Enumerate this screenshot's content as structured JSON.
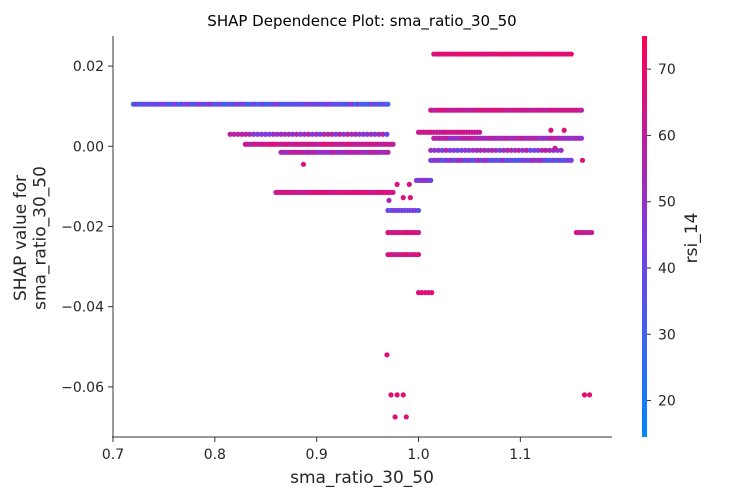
{
  "chart_data": {
    "type": "scatter",
    "title": "SHAP Dependence Plot: sma_ratio_30_50",
    "xlabel": "sma_ratio_30_50",
    "ylabel": "SHAP value for\nsma_ratio_30_50",
    "xlim": [
      0.7,
      1.19
    ],
    "ylim": [
      -0.0725,
      0.0275
    ],
    "xticks": [
      "0.7",
      "0.8",
      "0.9",
      "1.0",
      "1.1"
    ],
    "yticks": [
      "0.02",
      "0.00",
      "−0.02",
      "−0.04",
      "−0.06"
    ],
    "colorbar": {
      "label": "rsi_14",
      "range": [
        14.5,
        75
      ],
      "ticks": [
        "20",
        "30",
        "40",
        "50",
        "60",
        "70"
      ],
      "colors": [
        "#008afb",
        "#7d3be2",
        "#ff0052"
      ]
    },
    "bands": [
      {
        "y": 0.0105,
        "x0": 0.72,
        "x1": 0.97,
        "n": 95,
        "rsi_mean": 38,
        "rsi_spread": 12
      },
      {
        "y": 0.003,
        "x0": 0.815,
        "x1": 0.965,
        "n": 40,
        "rsi_mean": 52,
        "rsi_spread": 8
      },
      {
        "y": 0.0005,
        "x0": 0.83,
        "x1": 0.975,
        "n": 60,
        "rsi_mean": 62,
        "rsi_spread": 6
      },
      {
        "y": -0.0015,
        "x0": 0.865,
        "x1": 0.97,
        "n": 45,
        "rsi_mean": 55,
        "rsi_spread": 6
      },
      {
        "y": -0.0115,
        "x0": 0.86,
        "x1": 0.975,
        "n": 50,
        "rsi_mean": 65,
        "rsi_spread": 4
      },
      {
        "y": -0.016,
        "x0": 0.97,
        "x1": 1.0,
        "n": 12,
        "rsi_mean": 40,
        "rsi_spread": 8
      },
      {
        "y": -0.0215,
        "x0": 0.97,
        "x1": 1.0,
        "n": 12,
        "rsi_mean": 65,
        "rsi_spread": 4
      },
      {
        "y": -0.027,
        "x0": 0.97,
        "x1": 1.0,
        "n": 12,
        "rsi_mean": 65,
        "rsi_spread": 4
      },
      {
        "y": 0.023,
        "x0": 1.015,
        "x1": 1.15,
        "n": 50,
        "rsi_mean": 68,
        "rsi_spread": 3
      },
      {
        "y": 0.009,
        "x0": 1.012,
        "x1": 1.16,
        "n": 65,
        "rsi_mean": 63,
        "rsi_spread": 4
      },
      {
        "y": 0.0035,
        "x0": 1.0,
        "x1": 1.06,
        "n": 25,
        "rsi_mean": 62,
        "rsi_spread": 4
      },
      {
        "y": 0.002,
        "x0": 1.015,
        "x1": 1.16,
        "n": 55,
        "rsi_mean": 55,
        "rsi_spread": 7
      },
      {
        "y": -0.001,
        "x0": 1.012,
        "x1": 1.14,
        "n": 35,
        "rsi_mean": 50,
        "rsi_spread": 10
      },
      {
        "y": -0.0035,
        "x0": 1.012,
        "x1": 1.15,
        "n": 75,
        "rsi_mean": 42,
        "rsi_spread": 14
      },
      {
        "y": -0.0085,
        "x0": 0.998,
        "x1": 1.012,
        "n": 8,
        "rsi_mean": 45,
        "rsi_spread": 6
      },
      {
        "y": -0.0365,
        "x0": 1.0,
        "x1": 1.013,
        "n": 5,
        "rsi_mean": 68,
        "rsi_spread": 3
      },
      {
        "y": -0.0215,
        "x0": 1.155,
        "x1": 1.17,
        "n": 6,
        "rsi_mean": 62,
        "rsi_spread": 4
      }
    ],
    "points": [
      {
        "x": 0.969,
        "y": -0.052,
        "rsi": 68
      },
      {
        "x": 0.973,
        "y": -0.062,
        "rsi": 68
      },
      {
        "x": 0.979,
        "y": -0.062,
        "rsi": 68
      },
      {
        "x": 0.985,
        "y": -0.062,
        "rsi": 68
      },
      {
        "x": 0.977,
        "y": -0.0675,
        "rsi": 68
      },
      {
        "x": 0.988,
        "y": -0.0675,
        "rsi": 68
      },
      {
        "x": 1.163,
        "y": -0.062,
        "rsi": 68
      },
      {
        "x": 1.168,
        "y": -0.062,
        "rsi": 68
      },
      {
        "x": 0.887,
        "y": -0.0045,
        "rsi": 65
      },
      {
        "x": 0.979,
        "y": -0.0095,
        "rsi": 66
      },
      {
        "x": 0.991,
        "y": -0.0095,
        "rsi": 66
      },
      {
        "x": 0.985,
        "y": -0.0128,
        "rsi": 66
      },
      {
        "x": 0.992,
        "y": -0.0128,
        "rsi": 66
      },
      {
        "x": 0.971,
        "y": -0.0135,
        "rsi": 55
      },
      {
        "x": 0.969,
        "y": 0.003,
        "rsi": 40
      },
      {
        "x": 1.13,
        "y": 0.004,
        "rsi": 66
      },
      {
        "x": 1.143,
        "y": 0.004,
        "rsi": 66
      },
      {
        "x": 1.161,
        "y": -0.0035,
        "rsi": 66
      },
      {
        "x": 1.134,
        "y": -0.0005,
        "rsi": 60
      }
    ]
  }
}
